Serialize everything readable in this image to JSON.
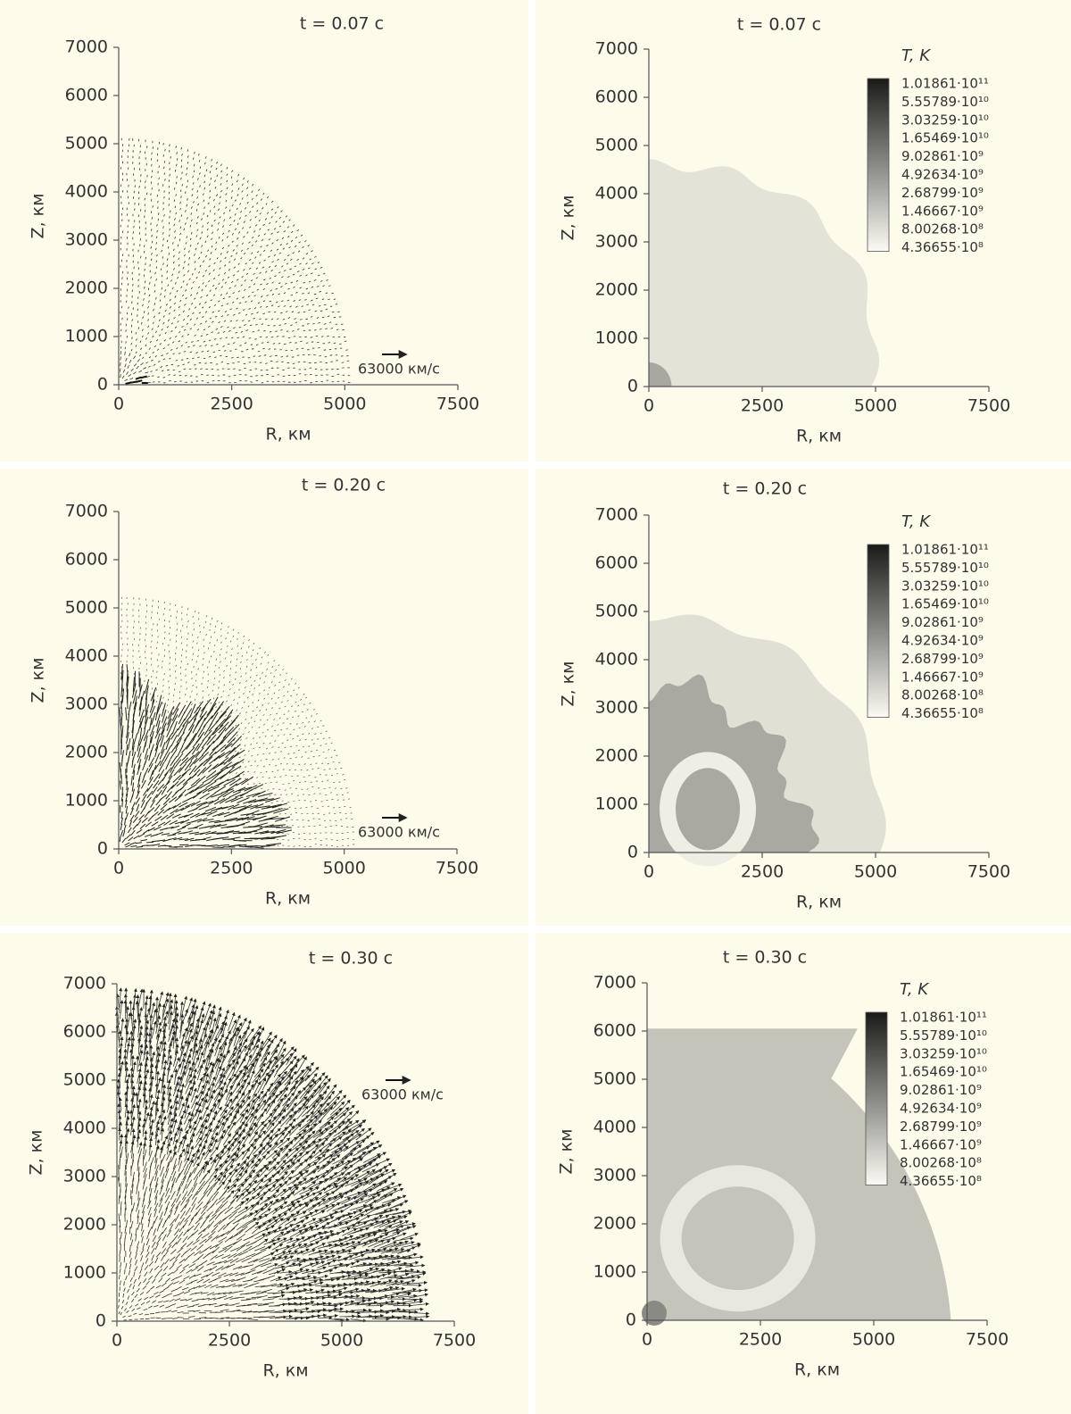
{
  "chart_data": [
    {
      "type": "vector",
      "title": "t = 0.07 с",
      "xlabel": "R, км",
      "ylabel": "Z, км",
      "xlim": [
        0,
        7500
      ],
      "ylim": [
        0,
        7000
      ],
      "xticks": [
        0,
        2500,
        5000,
        7500
      ],
      "yticks": [
        0,
        1000,
        2000,
        3000,
        4000,
        5000,
        6000,
        7000
      ],
      "reference_arrow": "63000 км/с"
    },
    {
      "type": "heatmap",
      "title": "t = 0.07 с",
      "xlabel": "R, км",
      "ylabel": "Z, км",
      "xlim": [
        0,
        7500
      ],
      "ylim": [
        0,
        7000
      ],
      "xticks": [
        0,
        2500,
        5000,
        7500
      ],
      "yticks": [
        0,
        1000,
        2000,
        3000,
        4000,
        5000,
        6000,
        7000
      ],
      "colorbar": {
        "title": "T, K",
        "labels": [
          "1.01861·10¹¹",
          "5.55789·10¹⁰",
          "3.03259·10¹⁰",
          "1.65469·10¹⁰",
          "9.02861·10⁹",
          "4.92634·10⁹",
          "2.68799·10⁹",
          "1.46667·10⁹",
          "8.00268·10⁸",
          "4.36655·10⁸"
        ]
      }
    },
    {
      "type": "vector",
      "title": "t = 0.20 с",
      "xlabel": "R, км",
      "ylabel": "Z, км",
      "xlim": [
        0,
        7500
      ],
      "ylim": [
        0,
        7000
      ],
      "xticks": [
        0,
        2500,
        5000,
        7500
      ],
      "yticks": [
        0,
        1000,
        2000,
        3000,
        4000,
        5000,
        6000,
        7000
      ],
      "reference_arrow": "63000 км/с"
    },
    {
      "type": "heatmap",
      "title": "t = 0.20 с",
      "xlabel": "R, км",
      "ylabel": "Z, км",
      "xlim": [
        0,
        7500
      ],
      "ylim": [
        0,
        7000
      ],
      "xticks": [
        0,
        2500,
        5000,
        7500
      ],
      "yticks": [
        0,
        1000,
        2000,
        3000,
        4000,
        5000,
        6000,
        7000
      ],
      "colorbar": {
        "title": "T, K",
        "labels": [
          "1.01861·10¹¹",
          "5.55789·10¹⁰",
          "3.03259·10¹⁰",
          "1.65469·10¹⁰",
          "9.02861·10⁹",
          "4.92634·10⁹",
          "2.68799·10⁹",
          "1.46667·10⁹",
          "8.00268·10⁸",
          "4.36655·10⁸"
        ]
      }
    },
    {
      "type": "vector",
      "title": "t = 0.30 с",
      "xlabel": "R, км",
      "ylabel": "Z, км",
      "xlim": [
        0,
        7500
      ],
      "ylim": [
        0,
        7000
      ],
      "xticks": [
        0,
        2500,
        5000,
        7500
      ],
      "yticks": [
        0,
        1000,
        2000,
        3000,
        4000,
        5000,
        6000,
        7000
      ],
      "reference_arrow": "63000 км/с"
    },
    {
      "type": "heatmap",
      "title": "t = 0.30 с",
      "xlabel": "R, км",
      "ylabel": "Z, км",
      "xlim": [
        0,
        7500
      ],
      "ylim": [
        0,
        7000
      ],
      "xticks": [
        0,
        2500,
        5000,
        7500
      ],
      "yticks": [
        0,
        1000,
        2000,
        3000,
        4000,
        5000,
        6000,
        7000
      ],
      "colorbar": {
        "title": "T, K",
        "labels": [
          "1.01861·10¹¹",
          "5.55789·10¹⁰",
          "3.03259·10¹⁰",
          "1.65469·10¹⁰",
          "9.02861·10⁹",
          "4.92634·10⁹",
          "2.68799·10⁹",
          "1.46667·10⁹",
          "8.00268·10⁸",
          "4.36655·10⁸"
        ]
      }
    }
  ]
}
